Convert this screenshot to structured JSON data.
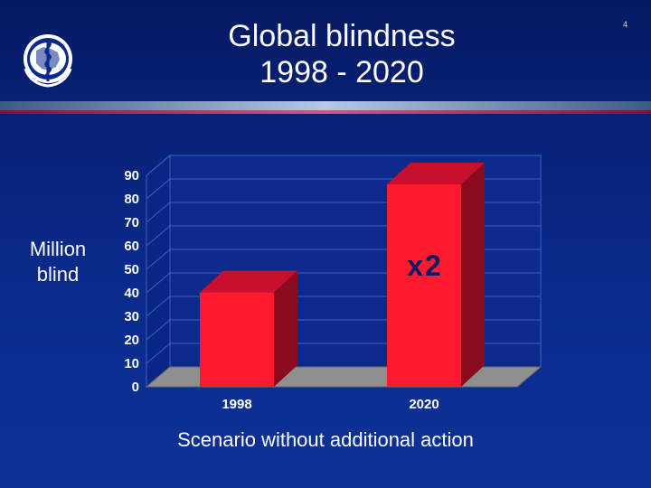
{
  "slide": {
    "number": "4",
    "title_lines": [
      "Global blindness",
      "1998 - 2020"
    ],
    "logo_icon": "who-emblem-icon"
  },
  "chart_data": {
    "type": "bar",
    "categories": [
      "1998",
      "2020"
    ],
    "values": [
      44,
      90
    ],
    "ylabel": "Million blind",
    "xlabel": "Scenario without additional action",
    "ylim": [
      0,
      90
    ],
    "yticks": [
      0,
      10,
      20,
      30,
      40,
      50,
      60,
      70,
      80,
      90
    ],
    "annotation": "x2",
    "grid": true,
    "bar_color": "#ff1a2e",
    "bar_side_color": "#8a0a1e",
    "bar_top_color": "#c8102e"
  }
}
